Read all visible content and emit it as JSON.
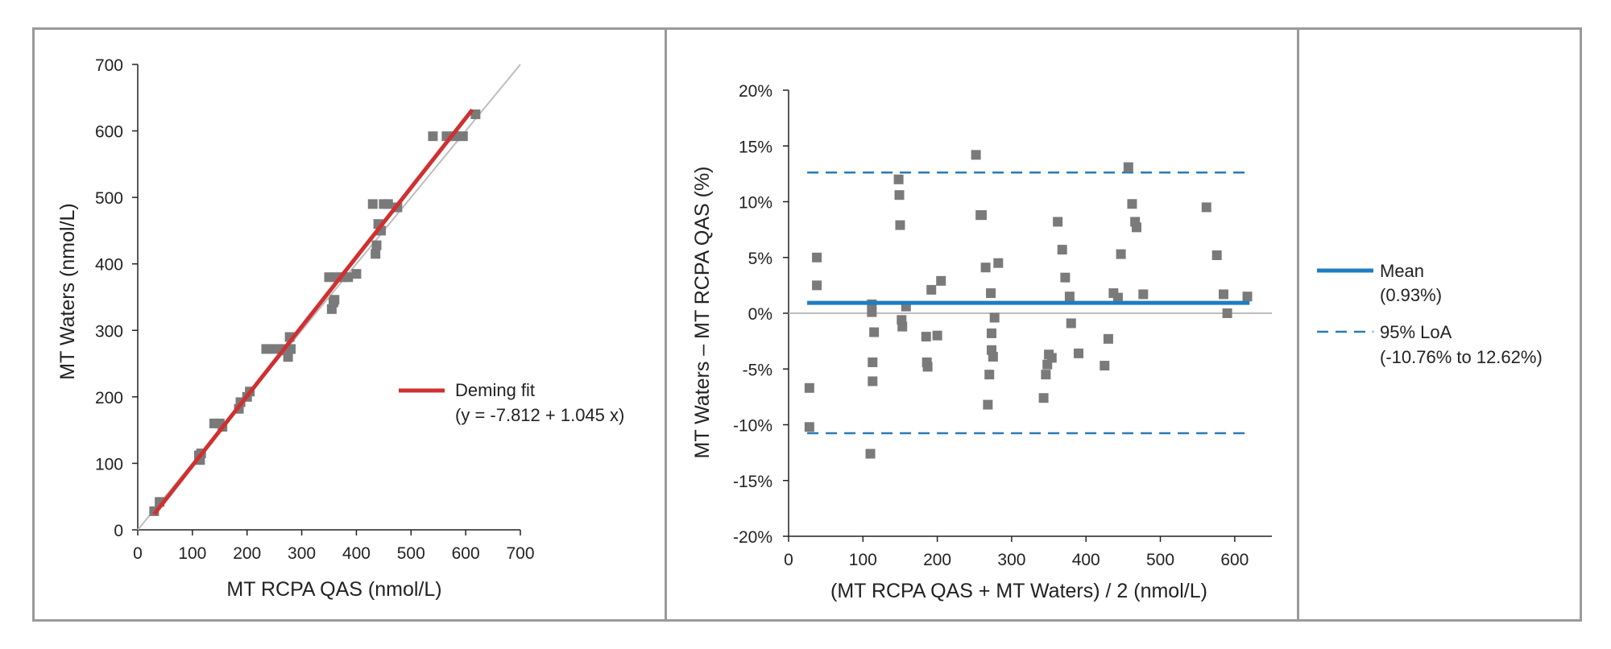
{
  "colors": {
    "frame": "#9a9a9a",
    "marker": "#7a7a7a",
    "fit": "#d03030",
    "identity": "#bdbdbd",
    "mean": "#1f7dc1",
    "loa": "#2a7ab5",
    "zero": "#bdbdbd"
  },
  "chart_data": [
    {
      "id": "deming",
      "type": "scatter",
      "xlabel": "MT RCPA QAS (nmol/L)",
      "ylabel": "MT Waters (nmol/L)",
      "xlim": [
        0,
        700
      ],
      "ylim": [
        0,
        700
      ],
      "xticks": [
        0,
        100,
        200,
        300,
        400,
        500,
        600,
        700
      ],
      "yticks": [
        0,
        100,
        200,
        300,
        400,
        500,
        600,
        700
      ],
      "legend": {
        "position": "right",
        "label": "Deming fit",
        "equation": "(y = -7.812 + 1.045 x)"
      },
      "fit": {
        "intercept": -7.812,
        "slope": 1.045,
        "x_range": [
          30,
          612
        ]
      },
      "identity_line": [
        [
          0,
          0
        ],
        [
          700,
          700
        ]
      ],
      "points": [
        [
          30,
          28
        ],
        [
          40,
          42
        ],
        [
          112,
          112
        ],
        [
          114,
          105
        ],
        [
          116,
          115
        ],
        [
          140,
          160
        ],
        [
          150,
          160
        ],
        [
          155,
          155
        ],
        [
          185,
          182
        ],
        [
          188,
          192
        ],
        [
          200,
          200
        ],
        [
          205,
          208
        ],
        [
          235,
          272
        ],
        [
          248,
          272
        ],
        [
          265,
          272
        ],
        [
          272,
          270
        ],
        [
          275,
          260
        ],
        [
          278,
          290
        ],
        [
          280,
          272
        ],
        [
          350,
          380
        ],
        [
          355,
          332
        ],
        [
          358,
          342
        ],
        [
          360,
          346
        ],
        [
          365,
          380
        ],
        [
          375,
          380
        ],
        [
          385,
          380
        ],
        [
          400,
          385
        ],
        [
          430,
          490
        ],
        [
          435,
          415
        ],
        [
          437,
          428
        ],
        [
          440,
          460
        ],
        [
          445,
          450
        ],
        [
          450,
          490
        ],
        [
          458,
          490
        ],
        [
          475,
          485
        ],
        [
          540,
          592
        ],
        [
          565,
          592
        ],
        [
          580,
          592
        ],
        [
          595,
          592
        ],
        [
          618,
          625
        ]
      ]
    },
    {
      "id": "bland-altman",
      "type": "scatter",
      "xlabel": "(MT RCPA QAS + MT Waters) / 2 (nmol/L)",
      "ylabel": "MT Waters – MT RCPA QAS (%)",
      "xlim": [
        0,
        650
      ],
      "ylim": [
        -20,
        20
      ],
      "xticks": [
        0,
        100,
        200,
        300,
        400,
        500,
        600
      ],
      "ytick_labels": [
        "-20%",
        "-15%",
        "-10%",
        "-5%",
        "0%",
        "5%",
        "10%",
        "15%",
        "20%"
      ],
      "mean": 0.93,
      "loa_low": -10.76,
      "loa_high": 12.62,
      "lines_x_range": [
        25,
        620
      ],
      "legend": {
        "position": "right",
        "mean_label": "Mean",
        "mean_value": "(0.93%)",
        "loa_label": "95% LoA",
        "loa_value": "(-10.76% to 12.62%)"
      },
      "points": [
        [
          28,
          -6.7
        ],
        [
          28,
          -10.2
        ],
        [
          38,
          5.0
        ],
        [
          38,
          2.5
        ],
        [
          110,
          -12.6
        ],
        [
          112,
          0.8
        ],
        [
          112,
          0.1
        ],
        [
          113,
          -4.4
        ],
        [
          113,
          -6.1
        ],
        [
          115,
          -1.7
        ],
        [
          148,
          12.0
        ],
        [
          149,
          10.6
        ],
        [
          150,
          7.9
        ],
        [
          152,
          -0.6
        ],
        [
          153,
          -1.2
        ],
        [
          158,
          0.6
        ],
        [
          185,
          -2.1
        ],
        [
          186,
          -4.4
        ],
        [
          187,
          -4.8
        ],
        [
          192,
          2.1
        ],
        [
          200,
          -2.0
        ],
        [
          205,
          2.9
        ],
        [
          252,
          14.2
        ],
        [
          258,
          8.8
        ],
        [
          260,
          8.8
        ],
        [
          265,
          4.1
        ],
        [
          268,
          -8.2
        ],
        [
          270,
          -5.5
        ],
        [
          272,
          1.8
        ],
        [
          273,
          -1.8
        ],
        [
          273,
          -3.3
        ],
        [
          275,
          -3.9
        ],
        [
          277,
          -0.4
        ],
        [
          282,
          4.5
        ],
        [
          343,
          -7.6
        ],
        [
          346,
          -5.5
        ],
        [
          348,
          -4.6
        ],
        [
          350,
          -3.7
        ],
        [
          354,
          -4.0
        ],
        [
          362,
          8.2
        ],
        [
          368,
          5.7
        ],
        [
          372,
          3.2
        ],
        [
          378,
          1.5
        ],
        [
          380,
          -0.9
        ],
        [
          390,
          -3.6
        ],
        [
          425,
          -4.7
        ],
        [
          430,
          -2.3
        ],
        [
          437,
          1.8
        ],
        [
          443,
          1.4
        ],
        [
          447,
          5.3
        ],
        [
          457,
          13.1
        ],
        [
          462,
          9.8
        ],
        [
          466,
          8.2
        ],
        [
          468,
          7.7
        ],
        [
          477,
          1.7
        ],
        [
          562,
          9.5
        ],
        [
          576,
          5.2
        ],
        [
          585,
          1.7
        ],
        [
          590,
          0.0
        ],
        [
          617,
          1.5
        ]
      ]
    }
  ]
}
